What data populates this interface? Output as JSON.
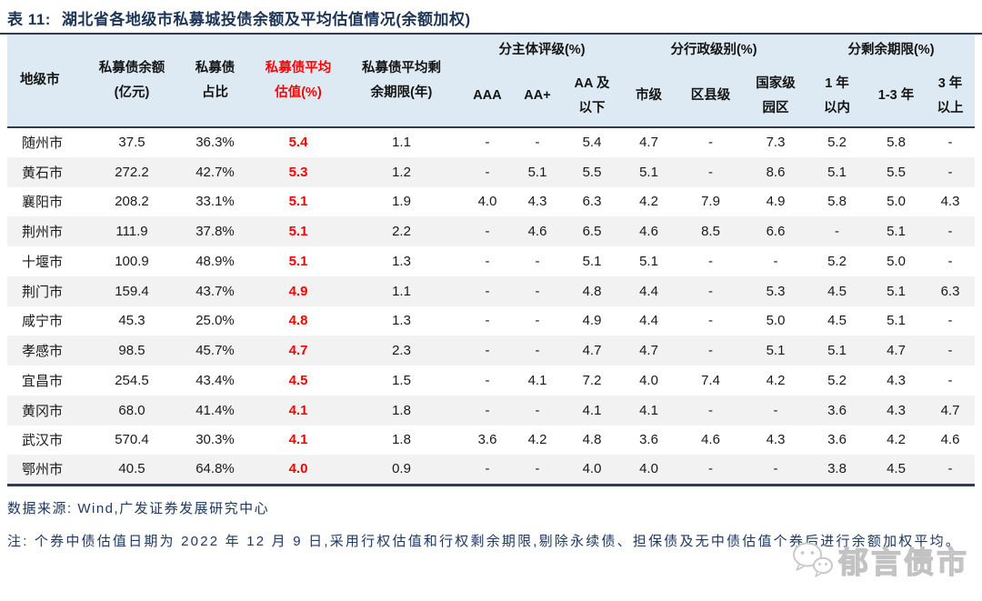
{
  "title": {
    "label": "表 11:",
    "text": "湖北省各地级市私募城投债余额及平均估值情况(余额加权)"
  },
  "colors": {
    "title_navy": "#1c3557",
    "rule_navy": "#2f3b50",
    "header_bg": "#deeaf3",
    "row_alt_gray": "#f2f2f2",
    "highlight_red": "#ff0000",
    "footer_navy": "#1f3864",
    "watermark_gray": "#c2c2c2"
  },
  "table": {
    "headers": {
      "city": "地级市",
      "balance": [
        "私募债余额",
        "(亿元)"
      ],
      "share": [
        "私募债",
        "占比"
      ],
      "valuation": [
        "私募债平均",
        "估值(%)"
      ],
      "maturity": [
        "私募债平均剩",
        "余期限(年)"
      ],
      "groups": [
        {
          "label": "分主体评级(%)",
          "cols": [
            [
              "AAA"
            ],
            [
              "AA+"
            ],
            [
              "AA 及",
              "以下"
            ]
          ]
        },
        {
          "label": "分行政级别(%)",
          "cols": [
            [
              "市级"
            ],
            [
              "区县级"
            ],
            [
              "国家级",
              "园区"
            ]
          ]
        },
        {
          "label": "分剩余期限(%)",
          "cols": [
            [
              "1 年",
              "以内"
            ],
            [
              "1-3 年"
            ],
            [
              "3 年",
              "以上"
            ]
          ]
        }
      ]
    },
    "rows": [
      [
        "随州市",
        "37.5",
        "36.3%",
        "5.4",
        "1.1",
        "-",
        "-",
        "5.4",
        "4.7",
        "-",
        "7.3",
        "5.2",
        "5.8",
        "-"
      ],
      [
        "黄石市",
        "272.2",
        "42.7%",
        "5.3",
        "1.2",
        "-",
        "5.1",
        "5.5",
        "5.1",
        "-",
        "8.6",
        "5.1",
        "5.5",
        "-"
      ],
      [
        "襄阳市",
        "208.2",
        "33.1%",
        "5.1",
        "1.9",
        "4.0",
        "4.3",
        "6.3",
        "4.2",
        "7.9",
        "4.9",
        "5.8",
        "5.0",
        "4.3"
      ],
      [
        "荆州市",
        "111.9",
        "37.8%",
        "5.1",
        "2.2",
        "-",
        "4.6",
        "6.5",
        "4.6",
        "8.5",
        "6.6",
        "-",
        "5.1",
        "-"
      ],
      [
        "十堰市",
        "100.9",
        "48.9%",
        "5.1",
        "1.3",
        "-",
        "-",
        "5.1",
        "5.1",
        "-",
        "-",
        "5.2",
        "5.0",
        "-"
      ],
      [
        "荆门市",
        "159.4",
        "43.7%",
        "4.9",
        "1.1",
        "-",
        "-",
        "4.8",
        "4.4",
        "-",
        "5.3",
        "4.5",
        "5.1",
        "6.3"
      ],
      [
        "咸宁市",
        "45.3",
        "25.0%",
        "4.8",
        "1.3",
        "-",
        "-",
        "4.9",
        "4.4",
        "-",
        "5.0",
        "4.5",
        "5.1",
        "-"
      ],
      [
        "孝感市",
        "98.5",
        "45.7%",
        "4.7",
        "2.3",
        "-",
        "-",
        "4.7",
        "4.7",
        "-",
        "5.1",
        "5.1",
        "4.7",
        "-"
      ],
      [
        "宜昌市",
        "254.5",
        "43.4%",
        "4.5",
        "1.5",
        "-",
        "4.1",
        "7.2",
        "4.0",
        "7.4",
        "4.2",
        "5.2",
        "4.3",
        "-"
      ],
      [
        "黄冈市",
        "68.0",
        "41.4%",
        "4.1",
        "1.8",
        "-",
        "-",
        "4.1",
        "4.1",
        "-",
        "-",
        "3.6",
        "4.3",
        "4.7"
      ],
      [
        "武汉市",
        "570.4",
        "30.3%",
        "4.1",
        "1.8",
        "3.6",
        "4.2",
        "4.8",
        "3.6",
        "4.6",
        "4.3",
        "3.6",
        "4.2",
        "4.6"
      ],
      [
        "鄂州市",
        "40.5",
        "64.8%",
        "4.0",
        "0.9",
        "-",
        "-",
        "4.0",
        "4.0",
        "-",
        "-",
        "3.8",
        "4.5",
        "-"
      ]
    ]
  },
  "footer": {
    "source": "数据来源: Wind,广发证券发展研究中心",
    "note": "注: 个券中债估值日期为 2022 年 12 月 9 日,采用行权估值和行权剩余期限,剔除永续债、担保债及无中债估值个券后进行余额加权平均。",
    "watermark": {
      "icon_name": "wechat-icon",
      "text": "郁言债市"
    }
  }
}
